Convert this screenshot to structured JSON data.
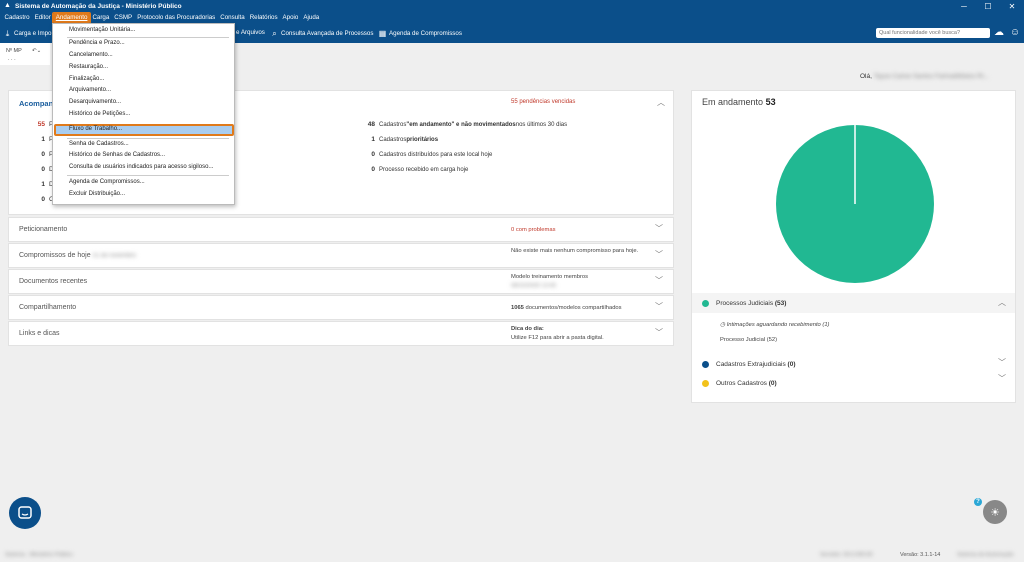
{
  "window": {
    "title": "Sistema de Automação da Justiça - Ministério Público",
    "minimize": "─",
    "maximize": "☐",
    "close": "✕"
  },
  "menubar": [
    "Cadastro",
    "Editor",
    "Andamento",
    "Carga",
    "CSMP",
    "Protocolo das Procuradorias",
    "Consulta",
    "Relatórios",
    "Apoio",
    "Ajuda"
  ],
  "toolbar": {
    "carga_label": "Carga e Impo",
    "arquivos_label": "e Arquivos",
    "consulta_label": "Consulta Avançada de Processos",
    "agenda_label": "Agenda de Compromissos",
    "search_placeholder": "Qual funcionalidade você busca?"
  },
  "subbar": {
    "mp_label": "Nº MP",
    "mp_value": ". . ."
  },
  "greeting": {
    "prefix": "Olá,",
    "name": "Tayse Carise Santos Farina&Matos Ri..."
  },
  "dropdown": {
    "items": [
      "Movimentação Unitária...",
      "Pendência e Prazo...",
      "Cancelamento...",
      "Restauração...",
      "Finalização...",
      "Arquivamento...",
      "Desarquivamento...",
      "Histórico de Petições...",
      "Fluxo de Trabalho...",
      "Senha de Cadastros...",
      "Histórico de Senhas de Cadastros...",
      "Consulta de usuários indicados para acesso sigiloso...",
      "Agenda de Compromissos...",
      "Excluir Distribuição..."
    ]
  },
  "main_panel": {
    "title": "Acompan",
    "overdue": "55 pendências vencidas",
    "left_rows": [
      {
        "num": "55",
        "text": "P",
        "red": true
      },
      {
        "num": "1",
        "text": "P",
        "red": false
      },
      {
        "num": "0",
        "text": "P",
        "red": false
      },
      {
        "num": "0",
        "text": "D",
        "red": false
      },
      {
        "num": "1",
        "text": "D",
        "red": false
      },
      {
        "num": "0",
        "text": "C",
        "red": false
      }
    ],
    "right_rows": [
      {
        "num": "48",
        "pre": "Cadastros ",
        "bold": "\"em andamento\" e não movimentados",
        "post": " nos últimos 30 dias"
      },
      {
        "num": "1",
        "pre": "Cadastros ",
        "bold": "prioritários",
        "post": ""
      },
      {
        "num": "0",
        "pre": "Cadastros distribuídos para este local hoje",
        "bold": "",
        "post": ""
      },
      {
        "num": "0",
        "pre": "Processo recebido em carga hoje",
        "bold": "",
        "post": ""
      }
    ]
  },
  "accordion": [
    {
      "title": "Peticionamento",
      "info": "",
      "info_red_num": "0",
      "info_red_text": " com problemas"
    },
    {
      "title": "Compromissos de hoje",
      "title_blur": "01 de novembro",
      "info": "Não existe mais nenhum compromisso para hoje."
    },
    {
      "title": "Documentos recentes",
      "info": "Modelo treinamento membros",
      "info_blur": "08/10/2020 13:45"
    },
    {
      "title": "Compartilhamento",
      "info_bold": "1065",
      "info": " documentos/modelos compartilhados"
    },
    {
      "title": "Links e dicas",
      "info_bold": "Dica do dia:",
      "info": "Utilize F12 para abrir a pasta digital."
    }
  ],
  "right_panel": {
    "title": "Em andamento",
    "count": "53",
    "legend": [
      {
        "label": "Processos Judiciais",
        "count": "(53)",
        "color": "#21b892"
      },
      {
        "label": "Cadastros Extrajudiciais",
        "count": "(0)",
        "color": "#0b4f8a"
      },
      {
        "label": "Outros Cadastros",
        "count": "(0)",
        "color": "#f2c21b"
      }
    ],
    "sub_items": [
      "Intimações aguardando recebimento (1)",
      "Processo Judicial (52)"
    ]
  },
  "chart_data": {
    "type": "pie",
    "title": "Em andamento 53",
    "categories": [
      "Processos Judiciais",
      "Cadastros Extrajudiciais",
      "Outros Cadastros"
    ],
    "values": [
      53,
      0,
      0
    ],
    "colors": [
      "#21b892",
      "#0b4f8a",
      "#f2c21b"
    ]
  },
  "statusbar": {
    "left": "Sistema - Ministério Público",
    "server": "Servidor: 00.0.000.00",
    "version": "Versão: 3.1.1-14",
    "right": "Sistema de Automação"
  },
  "colors": {
    "header": "#0b4f8a",
    "highlight": "#e07a1b",
    "danger": "#c0392b",
    "accent": "#21b892"
  }
}
